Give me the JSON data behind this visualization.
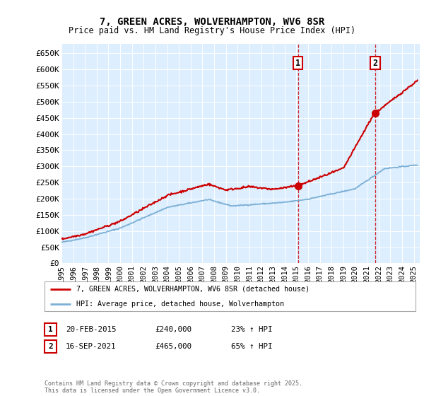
{
  "title": "7, GREEN ACRES, WOLVERHAMPTON, WV6 8SR",
  "subtitle": "Price paid vs. HM Land Registry's House Price Index (HPI)",
  "ylabel_ticks": [
    "£0",
    "£50K",
    "£100K",
    "£150K",
    "£200K",
    "£250K",
    "£300K",
    "£350K",
    "£400K",
    "£450K",
    "£500K",
    "£550K",
    "£600K",
    "£650K"
  ],
  "ytick_values": [
    0,
    50000,
    100000,
    150000,
    200000,
    250000,
    300000,
    350000,
    400000,
    450000,
    500000,
    550000,
    600000,
    650000
  ],
  "ylim": [
    0,
    680000
  ],
  "xlim_start": 1995.0,
  "xlim_end": 2025.5,
  "sale1_year": 2015.13,
  "sale1_price": 240000,
  "sale1_label": "1",
  "sale1_hpi_pct": "23% ↑ HPI",
  "sale1_date": "20-FEB-2015",
  "sale2_year": 2021.71,
  "sale2_price": 465000,
  "sale2_label": "2",
  "sale2_hpi_pct": "65% ↑ HPI",
  "sale2_date": "16-SEP-2021",
  "red_color": "#cc0000",
  "blue_color": "#7bafd4",
  "background_color": "#ddeeff",
  "legend_label_red": "7, GREEN ACRES, WOLVERHAMPTON, WV6 8SR (detached house)",
  "legend_label_blue": "HPI: Average price, detached house, Wolverhampton",
  "footer": "Contains HM Land Registry data © Crown copyright and database right 2025.\nThis data is licensed under the Open Government Licence v3.0.",
  "xtick_years": [
    1995,
    1996,
    1997,
    1998,
    1999,
    2000,
    2001,
    2002,
    2003,
    2004,
    2005,
    2006,
    2007,
    2008,
    2009,
    2010,
    2011,
    2012,
    2013,
    2014,
    2015,
    2016,
    2017,
    2018,
    2019,
    2020,
    2021,
    2022,
    2023,
    2024,
    2025
  ]
}
